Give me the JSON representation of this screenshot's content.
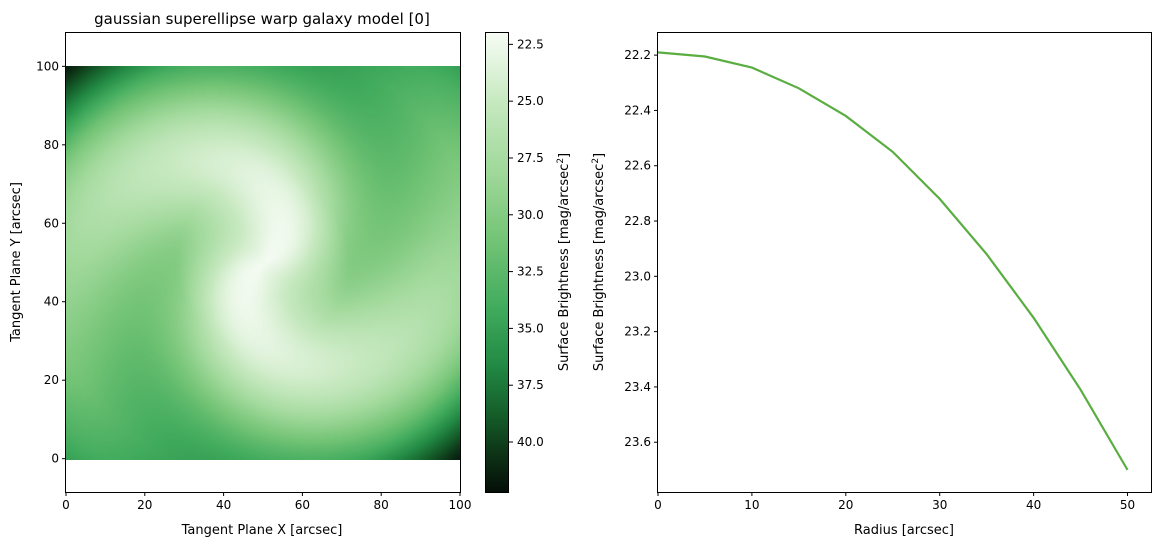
{
  "chart_data": [
    {
      "type": "heatmap",
      "title": "gaussian superellipse warp galaxy model [0]",
      "xlabel": "Tangent Plane X [arcsec]",
      "ylabel": "Tangent Plane Y [arcsec]",
      "xlim": [
        0,
        100
      ],
      "ylim": [
        -8.5,
        108.5
      ],
      "xticks": [
        "0",
        "20",
        "40",
        "60",
        "80",
        "100"
      ],
      "yticks": [
        "0",
        "20",
        "40",
        "60",
        "80",
        "100"
      ],
      "colormap": "Greens_r",
      "image_extent": [
        0,
        100,
        0,
        100
      ],
      "colorbar": {
        "label": "Surface Brightness [mag/arcsec",
        "label_sup": "2",
        "label_tail": "]",
        "range": [
          22.0,
          42.2
        ],
        "ticks": [
          "22.5",
          "25.0",
          "27.5",
          "30.0",
          "32.5",
          "35.0",
          "37.5",
          "40.0"
        ],
        "inverted": true
      },
      "model": {
        "center": [
          50,
          50
        ],
        "center_magnitude": 22.2,
        "corner_magnitude": 42.2,
        "arms": 2,
        "warp": "spiral"
      }
    },
    {
      "type": "line",
      "title": "",
      "xlabel": "Radius [arcsec]",
      "ylabel": "Surface Brightness [mag/arcsec",
      "ylabel_sup": "2",
      "ylabel_tail": "]",
      "xlim": [
        0,
        52.5
      ],
      "ylim": [
        23.78,
        22.12
      ],
      "y_inverted": true,
      "xticks": [
        "0",
        "10",
        "20",
        "30",
        "40",
        "50"
      ],
      "yticks": [
        "22.2",
        "22.4",
        "22.6",
        "22.8",
        "23.0",
        "23.2",
        "23.4",
        "23.6"
      ],
      "series": [
        {
          "color": "#5aad41",
          "x": [
            0,
            5,
            10,
            15,
            20,
            25,
            30,
            35,
            40,
            45,
            50
          ],
          "y": [
            22.19,
            22.205,
            22.245,
            22.32,
            22.42,
            22.55,
            22.72,
            22.92,
            23.15,
            23.41,
            23.7
          ]
        }
      ]
    }
  ]
}
